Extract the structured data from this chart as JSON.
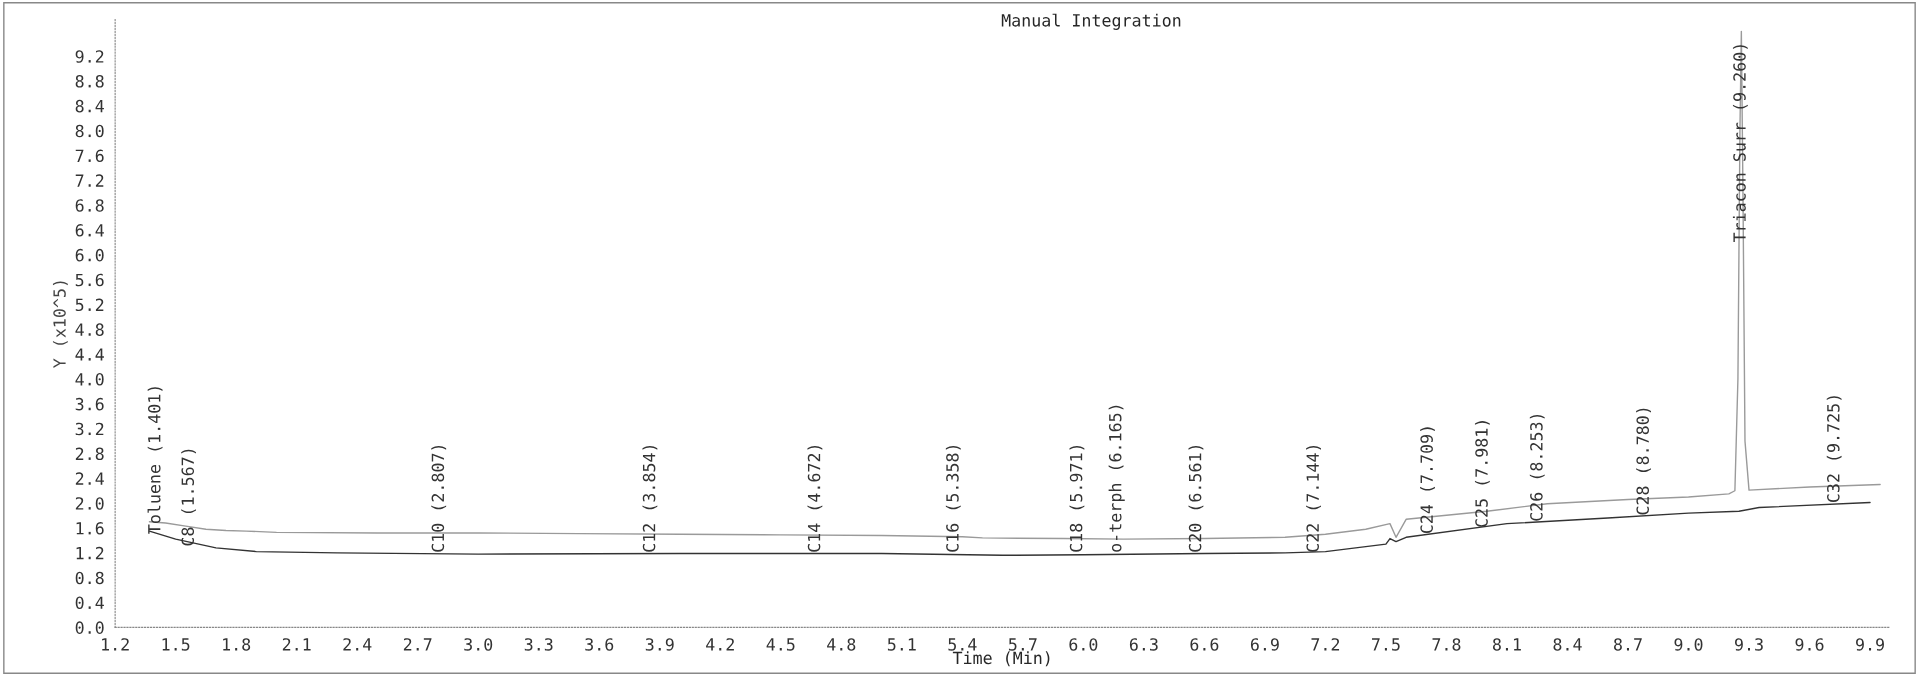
{
  "chart_data": {
    "type": "line",
    "title": "Manual Integration",
    "xlabel": "Time (Min)",
    "ylabel": "Y (x10^5)",
    "xlim": [
      1.2,
      10.0
    ],
    "ylim": [
      0.0,
      9.8
    ],
    "xticks": [
      1.2,
      1.5,
      1.8,
      2.1,
      2.4,
      2.7,
      {
        "value": 3.0,
        "label": "3.0"
      },
      3.3,
      3.6,
      3.9,
      4.2,
      4.5,
      4.8,
      5.1,
      5.4,
      5.7,
      {
        "value": 6.0,
        "label": "6.0"
      },
      6.3,
      6.6,
      6.9,
      7.2,
      7.5,
      7.8,
      8.1,
      8.4,
      8.7,
      {
        "value": 9.0,
        "label": "9.0"
      },
      9.3,
      9.6,
      9.9
    ],
    "yticks": [
      {
        "value": 0.0,
        "label": "0.0"
      },
      0.4,
      0.8,
      1.2,
      1.6,
      {
        "value": 2.0,
        "label": "2.0"
      },
      2.4,
      2.8,
      3.2,
      3.6,
      {
        "value": 4.0,
        "label": "4.0"
      },
      4.4,
      4.8,
      5.2,
      5.6,
      {
        "value": 6.0,
        "label": "6.0"
      },
      6.4,
      6.8,
      7.2,
      7.6,
      {
        "value": 8.0,
        "label": "8.0"
      },
      8.4,
      8.8,
      9.2
    ],
    "grid": false,
    "legend": false,
    "marker": "none",
    "line_style": "solid",
    "series": [
      {
        "color": "#9a9a9a",
        "x": [
          1.37,
          1.45,
          1.55,
          1.65,
          1.75,
          1.85,
          2.0,
          2.5,
          3.0,
          3.5,
          4.0,
          4.5,
          5.0,
          5.4,
          5.5,
          5.9,
          6.2,
          6.6,
          7.0,
          7.2,
          7.4,
          7.52,
          7.55,
          7.6,
          8.0,
          8.3,
          8.7,
          9.0,
          9.2,
          9.23,
          9.245,
          9.255,
          9.262,
          9.27,
          9.28,
          9.3,
          9.6,
          9.95
        ],
        "values": [
          1.7,
          1.68,
          1.63,
          1.58,
          1.56,
          1.55,
          1.53,
          1.52,
          1.52,
          1.51,
          1.5,
          1.49,
          1.48,
          1.46,
          1.44,
          1.43,
          1.42,
          1.43,
          1.45,
          1.5,
          1.58,
          1.67,
          1.45,
          1.74,
          1.87,
          1.99,
          2.06,
          2.1,
          2.15,
          2.2,
          4.0,
          8.0,
          9.6,
          7.0,
          3.0,
          2.21,
          2.26,
          2.3
        ]
      },
      {
        "color": "#333333",
        "x": [
          1.37,
          1.5,
          1.7,
          1.9,
          2.3,
          3.0,
          4.0,
          5.0,
          5.6,
          6.0,
          6.6,
          7.0,
          7.2,
          7.5,
          7.52,
          7.55,
          7.6,
          8.1,
          8.6,
          9.0,
          9.25,
          9.35,
          9.9
        ],
        "values": [
          1.55,
          1.42,
          1.28,
          1.22,
          1.2,
          1.18,
          1.19,
          1.19,
          1.16,
          1.17,
          1.19,
          1.2,
          1.22,
          1.34,
          1.43,
          1.38,
          1.45,
          1.67,
          1.76,
          1.84,
          1.87,
          1.93,
          2.01
        ]
      }
    ],
    "annotations": [
      {
        "text": "Toluene (1.401)",
        "x": 1.401,
        "y": 1.5
      },
      {
        "text": "C8 (1.567)",
        "x": 1.567,
        "y": 1.3
      },
      {
        "text": "C10 (2.807)",
        "x": 2.807,
        "y": 1.2
      },
      {
        "text": "C12 (3.854)",
        "x": 3.854,
        "y": 1.2
      },
      {
        "text": "C14 (4.672)",
        "x": 4.672,
        "y": 1.2
      },
      {
        "text": "C16 (5.358)",
        "x": 5.358,
        "y": 1.2
      },
      {
        "text": "C18 (5.971)",
        "x": 5.971,
        "y": 1.2
      },
      {
        "text": "o-terph (6.165)",
        "x": 6.165,
        "y": 1.2
      },
      {
        "text": "C20 (6.561)",
        "x": 6.561,
        "y": 1.2
      },
      {
        "text": "C22 (7.144)",
        "x": 7.144,
        "y": 1.2
      },
      {
        "text": "C24 (7.709)",
        "x": 7.709,
        "y": 1.5
      },
      {
        "text": "C25 (7.981)",
        "x": 7.981,
        "y": 1.6
      },
      {
        "text": "C26 (8.253)",
        "x": 8.253,
        "y": 1.7
      },
      {
        "text": "C28 (8.780)",
        "x": 8.78,
        "y": 1.8
      },
      {
        "text": "Triacon Surr (9.260)",
        "x": 9.26,
        "y": 6.2
      },
      {
        "text": "C32 (9.725)",
        "x": 9.725,
        "y": 2.0
      }
    ]
  }
}
